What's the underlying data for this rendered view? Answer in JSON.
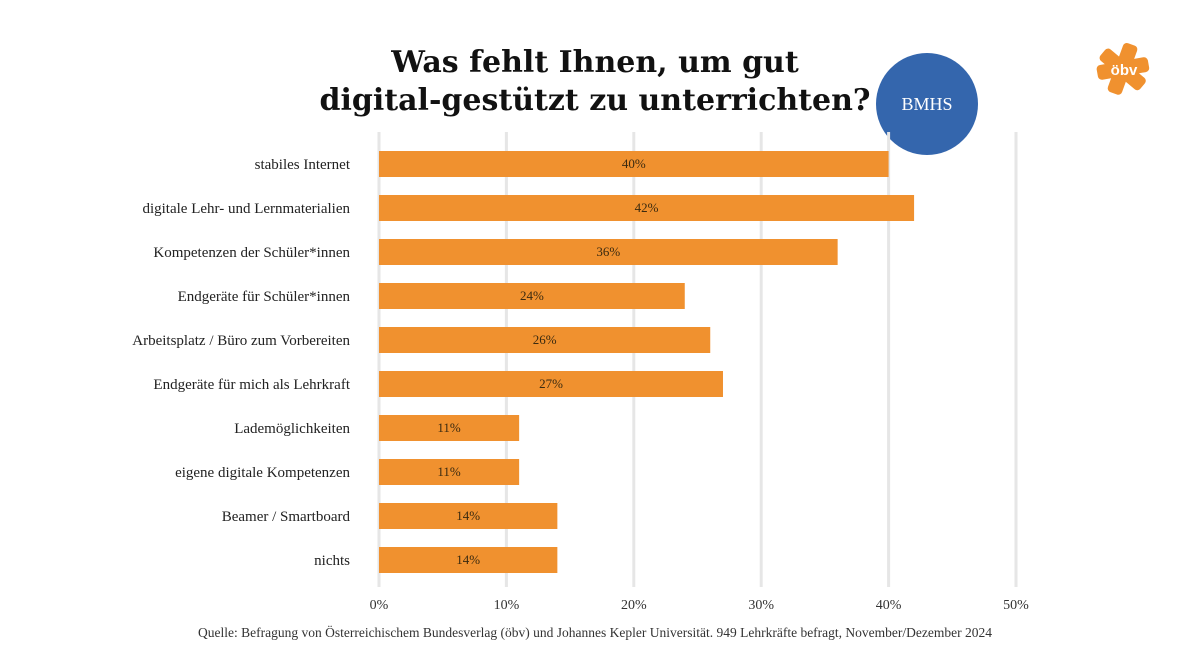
{
  "chart_data": {
    "type": "bar",
    "orientation": "horizontal",
    "title": "Was fehlt Ihnen, um gut digital-gestützt zu unterrichten?",
    "title_lines": [
      "Was fehlt Ihnen, um gut",
      "digital-gestützt zu unterrichten?"
    ],
    "categories": [
      "stabiles Internet",
      "digitale Lehr- und Lernmaterialien",
      "Kompetenzen der Schüler*innen",
      "Endgeräte für Schüler*innen",
      "Arbeitsplatz / Büro zum Vorbereiten",
      "Endgeräte für mich als Lehrkraft",
      "Lademöglichkeiten",
      "eigene digitale Kompetenzen",
      "Beamer / Smartboard",
      "nichts"
    ],
    "values": [
      40,
      42,
      36,
      24,
      26,
      27,
      11,
      11,
      14,
      14
    ],
    "value_labels": [
      "40%",
      "42%",
      "36%",
      "24%",
      "26%",
      "27%",
      "11%",
      "11%",
      "14%",
      "14%"
    ],
    "xlim": [
      0,
      50
    ],
    "xticks": [
      0,
      10,
      20,
      30,
      40,
      50
    ],
    "xtick_labels": [
      "0%",
      "10%",
      "20%",
      "30%",
      "40%",
      "50%"
    ],
    "xlabel": "",
    "ylabel": "",
    "grid": true,
    "bar_color": "#f0912f",
    "grid_color": "#e6e6e6"
  },
  "badge": {
    "label": "BMHS",
    "color": "#3466ad"
  },
  "logo": {
    "text": "öbv",
    "color": "#f0912f"
  },
  "source": "Quelle: Befragung von Österreichischem Bundesverlag (öbv) und Johannes Kepler Universität. 949 Lehrkräfte befragt, November/Dezember 2024"
}
